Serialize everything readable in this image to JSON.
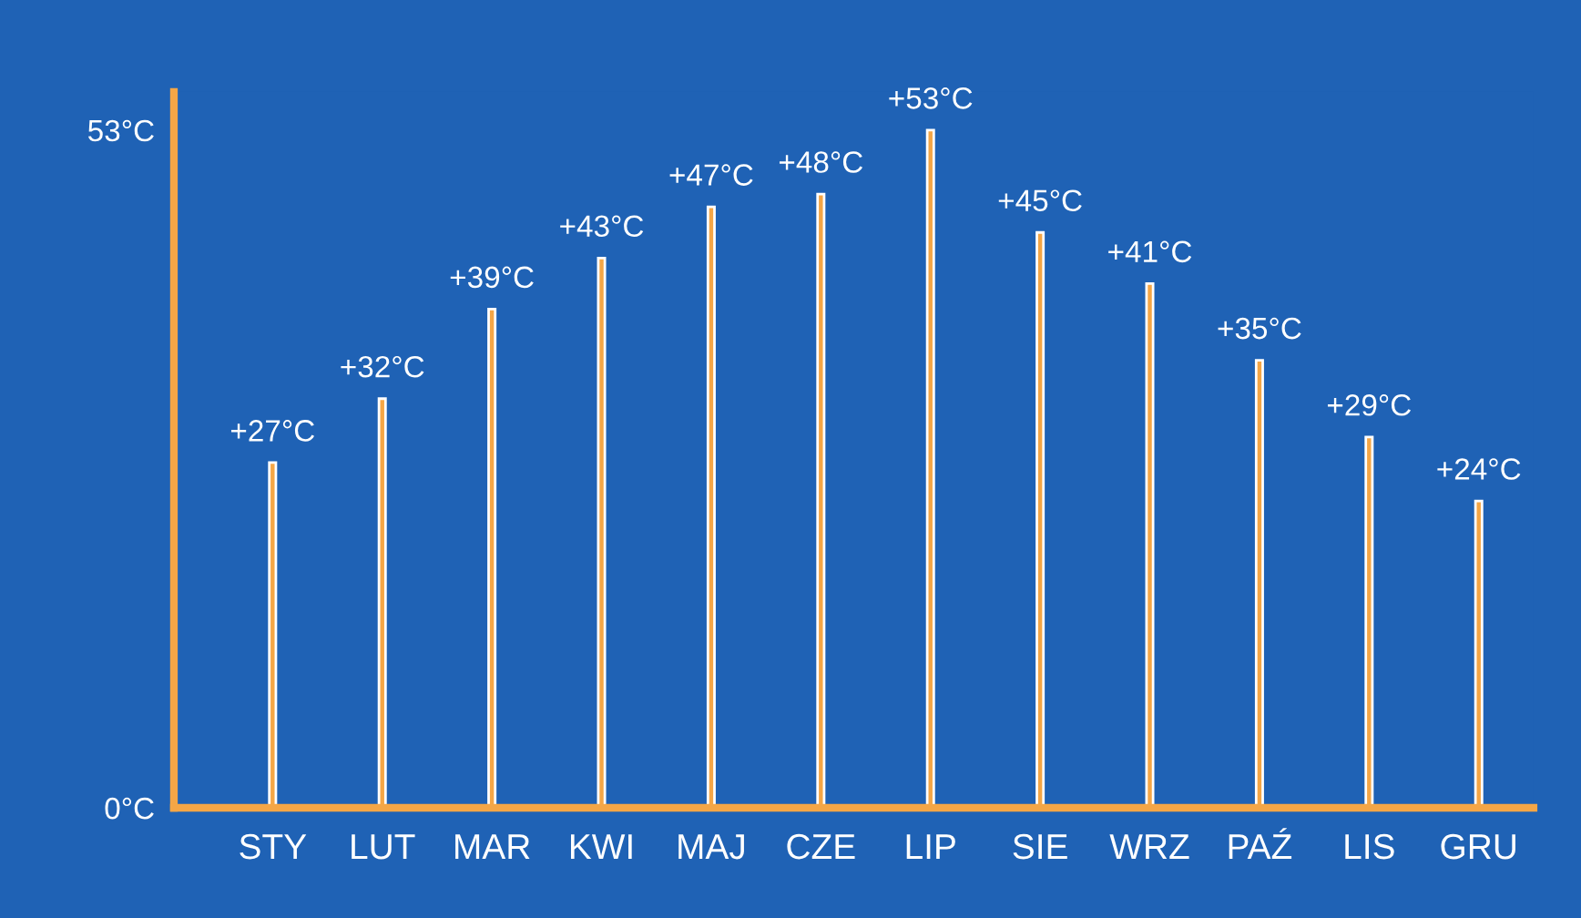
{
  "chart_data": {
    "type": "bar",
    "categories": [
      "STY",
      "LUT",
      "MAR",
      "KWI",
      "MAJ",
      "CZE",
      "LIP",
      "SIE",
      "WRZ",
      "PAŹ",
      "LIS",
      "GRU"
    ],
    "values": [
      27,
      32,
      39,
      43,
      47,
      48,
      53,
      45,
      41,
      35,
      29,
      24
    ],
    "value_labels": [
      "+27°C",
      "+32°C",
      "+39°C",
      "+43°C",
      "+47°C",
      "+48°C",
      "+53°C",
      "+45°C",
      "+41°C",
      "+35°C",
      "+29°C",
      "+24°C"
    ],
    "color": "#f4a646",
    "ylim": [
      0,
      56
    ],
    "yticks": [
      {
        "value": 0,
        "label": "0°C"
      },
      {
        "value": 53,
        "label": "53°C"
      }
    ],
    "grid": false,
    "legend": false
  }
}
